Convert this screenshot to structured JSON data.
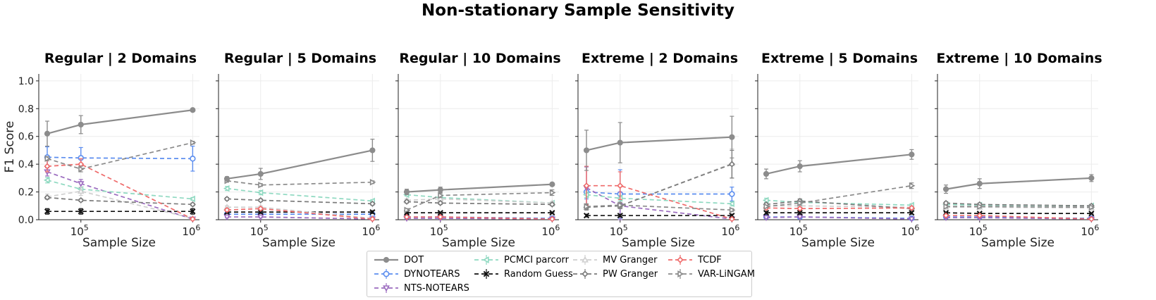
{
  "title": "Non-stationary Sample Sensitivity",
  "colors": {
    "DOT": "#8c8c8c",
    "DYNOTEARS": "#5b8def",
    "NTS-NOTEARS": "#9b6bbf",
    "PCMCI parcorr": "#8fd9c1",
    "Random Guess": "#111111",
    "MV Granger": "#cfcfcf",
    "PW Granger": "#7a7a7a",
    "TCDF": "#ef6b6b",
    "VAR-LiNGAM": "#8a8a8a"
  },
  "markers": {
    "DOT": "circle-filled",
    "DYNOTEARS": "circle",
    "NTS-NOTEARS": "triangle-down",
    "PCMCI parcorr": "triangle-left",
    "Random Guess": "x",
    "MV Granger": "triangle-up",
    "PW Granger": "diamond",
    "TCDF": "diamond",
    "VAR-LiNGAM": "triangle-right"
  },
  "legend": {
    "placement": "bottom-center",
    "columns": [
      [
        "DOT",
        "DYNOTEARS",
        "NTS-NOTEARS"
      ],
      [
        "PCMCI parcorr",
        "Random Guess"
      ],
      [
        "MV Granger",
        "PW Granger"
      ],
      [
        "TCDF",
        "VAR-LiNGAM"
      ]
    ]
  },
  "chart_data": [
    {
      "type": "line",
      "title": "Regular | 2 Domains",
      "xlabel": "Sample Size",
      "ylabel": "F1 Score",
      "xscale": "log",
      "x": [
        50000,
        100000,
        1000000
      ],
      "ylim": [
        0,
        1.05
      ],
      "yticks": [
        0.0,
        0.2,
        0.4,
        0.6,
        0.8,
        1.0
      ],
      "xticks": [
        {
          "label_base": "10",
          "label_exp": "5",
          "value": 100000
        },
        {
          "label_base": "10",
          "label_exp": "6",
          "value": 1000000
        }
      ],
      "grid": true,
      "series": [
        {
          "name": "DOT",
          "values": [
            0.62,
            0.685,
            0.79
          ],
          "err": [
            0.09,
            0.065,
            0.005
          ]
        },
        {
          "name": "DYNOTEARS",
          "values": [
            0.45,
            0.445,
            0.44
          ],
          "err": [
            0.075,
            0.075,
            0.09
          ]
        },
        {
          "name": "NTS-NOTEARS",
          "values": [
            0.345,
            0.26,
            0.005
          ],
          "err": [
            0.03,
            0.03,
            0.005
          ]
        },
        {
          "name": "PCMCI parcorr",
          "values": [
            0.285,
            0.22,
            0.15
          ],
          "err": [
            0.02,
            0.015,
            0.01
          ]
        },
        {
          "name": "Random Guess",
          "values": [
            0.06,
            0.06,
            0.06
          ],
          "err": [
            0.02,
            0.02,
            0.02
          ]
        },
        {
          "name": "MV Granger",
          "values": [
            0.165,
            0.205,
            0.01
          ],
          "err": [
            0.02,
            0.03,
            0.005
          ]
        },
        {
          "name": "PW Granger",
          "values": [
            0.16,
            0.14,
            0.11
          ],
          "err": [
            0.01,
            0.01,
            0.01
          ]
        },
        {
          "name": "TCDF",
          "values": [
            0.385,
            0.4,
            0.005
          ],
          "err": [
            0.04,
            0.04,
            0.005
          ]
        },
        {
          "name": "VAR-LiNGAM",
          "values": [
            0.44,
            0.365,
            0.555
          ],
          "err": [
            0.015,
            0.02,
            0.01
          ]
        }
      ]
    },
    {
      "type": "line",
      "title": "Regular | 5 Domains",
      "xlabel": "Sample Size",
      "ylabel": "",
      "xscale": "log",
      "x": [
        50000,
        100000,
        1000000
      ],
      "ylim": [
        0,
        1.05
      ],
      "yticks": [
        0.0,
        0.2,
        0.4,
        0.6,
        0.8,
        1.0
      ],
      "xticks": [
        {
          "label_base": "10",
          "label_exp": "5",
          "value": 100000
        },
        {
          "label_base": "10",
          "label_exp": "6",
          "value": 1000000
        }
      ],
      "grid": true,
      "series": [
        {
          "name": "DOT",
          "values": [
            0.295,
            0.33,
            0.5
          ],
          "err": [
            0.015,
            0.04,
            0.08
          ]
        },
        {
          "name": "DYNOTEARS",
          "values": [
            0.04,
            0.04,
            0.04
          ],
          "err": [
            0.01,
            0.01,
            0.01
          ]
        },
        {
          "name": "NTS-NOTEARS",
          "values": [
            0.02,
            0.02,
            0.005
          ],
          "err": [
            0.005,
            0.005,
            0.003
          ]
        },
        {
          "name": "PCMCI parcorr",
          "values": [
            0.225,
            0.195,
            0.135
          ],
          "err": [
            0.015,
            0.015,
            0.01
          ]
        },
        {
          "name": "Random Guess",
          "values": [
            0.055,
            0.055,
            0.055
          ],
          "err": [
            0.01,
            0.01,
            0.01
          ]
        },
        {
          "name": "MV Granger",
          "values": [
            0.09,
            0.09,
            0.01
          ],
          "err": [
            0.01,
            0.01,
            0.005
          ]
        },
        {
          "name": "PW Granger",
          "values": [
            0.15,
            0.14,
            0.115
          ],
          "err": [
            0.01,
            0.01,
            0.01
          ]
        },
        {
          "name": "TCDF",
          "values": [
            0.07,
            0.08,
            0.005
          ],
          "err": [
            0.01,
            0.01,
            0.003
          ]
        },
        {
          "name": "VAR-LiNGAM",
          "values": [
            0.28,
            0.25,
            0.27
          ],
          "err": [
            0.01,
            0.01,
            0.01
          ]
        }
      ]
    },
    {
      "type": "line",
      "title": "Regular | 10 Domains",
      "xlabel": "Sample Size",
      "ylabel": "",
      "xscale": "log",
      "x": [
        50000,
        100000,
        1000000
      ],
      "ylim": [
        0,
        1.05
      ],
      "yticks": [
        0.0,
        0.2,
        0.4,
        0.6,
        0.8,
        1.0
      ],
      "xticks": [
        {
          "label_base": "10",
          "label_exp": "5",
          "value": 100000
        },
        {
          "label_base": "10",
          "label_exp": "6",
          "value": 1000000
        }
      ],
      "grid": true,
      "series": [
        {
          "name": "DOT",
          "values": [
            0.2,
            0.215,
            0.255
          ],
          "err": [
            0.02,
            0.02,
            0.01
          ]
        },
        {
          "name": "DYNOTEARS",
          "values": [
            0.02,
            0.02,
            0.01
          ],
          "err": [
            0.005,
            0.005,
            0.005
          ]
        },
        {
          "name": "NTS-NOTEARS",
          "values": [
            0.01,
            0.01,
            0.005
          ],
          "err": [
            0.003,
            0.003,
            0.003
          ]
        },
        {
          "name": "PCMCI parcorr",
          "values": [
            0.18,
            0.16,
            0.12
          ],
          "err": [
            0.01,
            0.01,
            0.01
          ]
        },
        {
          "name": "Random Guess",
          "values": [
            0.05,
            0.05,
            0.05
          ],
          "err": [
            0.005,
            0.005,
            0.005
          ]
        },
        {
          "name": "MV Granger",
          "values": [
            0.14,
            0.15,
            0.12
          ],
          "err": [
            0.01,
            0.01,
            0.01
          ]
        },
        {
          "name": "PW Granger",
          "values": [
            0.13,
            0.12,
            0.11
          ],
          "err": [
            0.01,
            0.01,
            0.01
          ]
        },
        {
          "name": "TCDF",
          "values": [
            0.02,
            0.02,
            0.005
          ],
          "err": [
            0.005,
            0.005,
            0.003
          ]
        },
        {
          "name": "VAR-LiNGAM",
          "values": [
            0.07,
            0.175,
            0.195
          ],
          "err": [
            0.01,
            0.015,
            0.02
          ]
        }
      ]
    },
    {
      "type": "line",
      "title": "Extreme | 2 Domains",
      "xlabel": "Sample Size",
      "ylabel": "",
      "xscale": "log",
      "x": [
        50000,
        100000,
        1000000
      ],
      "ylim": [
        0,
        1.05
      ],
      "yticks": [
        0.0,
        0.2,
        0.4,
        0.6,
        0.8,
        1.0
      ],
      "xticks": [
        {
          "label_base": "10",
          "label_exp": "5",
          "value": 100000
        },
        {
          "label_base": "10",
          "label_exp": "6",
          "value": 1000000
        }
      ],
      "grid": true,
      "series": [
        {
          "name": "DOT",
          "values": [
            0.5,
            0.555,
            0.595
          ],
          "err": [
            0.145,
            0.145,
            0.15
          ]
        },
        {
          "name": "DYNOTEARS",
          "values": [
            0.2,
            0.185,
            0.185
          ],
          "err": [
            0.05,
            0.175,
            0.05
          ]
        },
        {
          "name": "NTS-NOTEARS",
          "values": [
            0.23,
            0.1,
            0.005
          ],
          "err": [
            0.15,
            0.1,
            0.005
          ]
        },
        {
          "name": "PCMCI parcorr",
          "values": [
            0.18,
            0.155,
            0.115
          ],
          "err": [
            0.02,
            0.02,
            0.015
          ]
        },
        {
          "name": "Random Guess",
          "values": [
            0.03,
            0.03,
            0.03
          ],
          "err": [
            0.01,
            0.01,
            0.01
          ]
        },
        {
          "name": "MV Granger",
          "values": [
            0.09,
            0.1,
            0.405
          ],
          "err": [
            0.02,
            0.02,
            0.105
          ]
        },
        {
          "name": "PW Granger",
          "values": [
            0.09,
            0.1,
            0.4
          ],
          "err": [
            0.02,
            0.02,
            0.1
          ]
        },
        {
          "name": "TCDF",
          "values": [
            0.245,
            0.245,
            0.005
          ],
          "err": [
            0.14,
            0.1,
            0.005
          ]
        },
        {
          "name": "VAR-LiNGAM",
          "values": [
            0.095,
            0.105,
            0.07
          ],
          "err": [
            0.02,
            0.02,
            0.01
          ]
        }
      ]
    },
    {
      "type": "line",
      "title": "Extreme | 5 Domains",
      "xlabel": "Sample Size",
      "ylabel": "",
      "xscale": "log",
      "x": [
        50000,
        100000,
        1000000
      ],
      "ylim": [
        0,
        1.05
      ],
      "yticks": [
        0.0,
        0.2,
        0.4,
        0.6,
        0.8,
        1.0
      ],
      "xticks": [
        {
          "label_base": "10",
          "label_exp": "5",
          "value": 100000
        },
        {
          "label_base": "10",
          "label_exp": "6",
          "value": 1000000
        }
      ],
      "grid": true,
      "series": [
        {
          "name": "DOT",
          "values": [
            0.33,
            0.385,
            0.47
          ],
          "err": [
            0.035,
            0.04,
            0.035
          ]
        },
        {
          "name": "DYNOTEARS",
          "values": [
            0.02,
            0.02,
            0.01
          ],
          "err": [
            0.005,
            0.005,
            0.005
          ]
        },
        {
          "name": "NTS-NOTEARS",
          "values": [
            0.015,
            0.02,
            0.005
          ],
          "err": [
            0.005,
            0.005,
            0.003
          ]
        },
        {
          "name": "PCMCI parcorr",
          "values": [
            0.14,
            0.125,
            0.105
          ],
          "err": [
            0.015,
            0.01,
            0.01
          ]
        },
        {
          "name": "Random Guess",
          "values": [
            0.05,
            0.05,
            0.05
          ],
          "err": [
            0.01,
            0.01,
            0.01
          ]
        },
        {
          "name": "MV Granger",
          "values": [
            0.1,
            0.1,
            0.09
          ],
          "err": [
            0.01,
            0.01,
            0.01
          ]
        },
        {
          "name": "PW Granger",
          "values": [
            0.11,
            0.135,
            0.08
          ],
          "err": [
            0.01,
            0.015,
            0.01
          ]
        },
        {
          "name": "TCDF",
          "values": [
            0.085,
            0.08,
            0.085
          ],
          "err": [
            0.01,
            0.01,
            0.01
          ]
        },
        {
          "name": "VAR-LiNGAM",
          "values": [
            0.095,
            0.12,
            0.245
          ],
          "err": [
            0.01,
            0.015,
            0.02
          ]
        }
      ]
    },
    {
      "type": "line",
      "title": "Extreme | 10 Domains",
      "xlabel": "Sample Size",
      "ylabel": "",
      "xscale": "log",
      "x": [
        50000,
        100000,
        1000000
      ],
      "ylim": [
        0,
        1.05
      ],
      "yticks": [
        0.0,
        0.2,
        0.4,
        0.6,
        0.8,
        1.0
      ],
      "xticks": [
        {
          "label_base": "10",
          "label_exp": "5",
          "value": 100000
        },
        {
          "label_base": "10",
          "label_exp": "6",
          "value": 1000000
        }
      ],
      "grid": true,
      "series": [
        {
          "name": "DOT",
          "values": [
            0.22,
            0.26,
            0.3
          ],
          "err": [
            0.03,
            0.035,
            0.025
          ]
        },
        {
          "name": "DYNOTEARS",
          "values": [
            0.02,
            0.02,
            0.01
          ],
          "err": [
            0.005,
            0.005,
            0.005
          ]
        },
        {
          "name": "NTS-NOTEARS",
          "values": [
            0.015,
            0.015,
            0.005
          ],
          "err": [
            0.005,
            0.005,
            0.003
          ]
        },
        {
          "name": "PCMCI parcorr",
          "values": [
            0.11,
            0.105,
            0.1
          ],
          "err": [
            0.01,
            0.01,
            0.01
          ]
        },
        {
          "name": "Random Guess",
          "values": [
            0.05,
            0.045,
            0.045
          ],
          "err": [
            0.005,
            0.005,
            0.005
          ]
        },
        {
          "name": "MV Granger",
          "values": [
            0.09,
            0.09,
            0.085
          ],
          "err": [
            0.01,
            0.01,
            0.01
          ]
        },
        {
          "name": "PW Granger",
          "values": [
            0.12,
            0.11,
            0.1
          ],
          "err": [
            0.01,
            0.01,
            0.01
          ]
        },
        {
          "name": "TCDF",
          "values": [
            0.03,
            0.03,
            0.005
          ],
          "err": [
            0.005,
            0.005,
            0.003
          ]
        },
        {
          "name": "VAR-LiNGAM",
          "values": [
            0.095,
            0.095,
            0.09
          ],
          "err": [
            0.01,
            0.01,
            0.01
          ]
        }
      ]
    }
  ]
}
